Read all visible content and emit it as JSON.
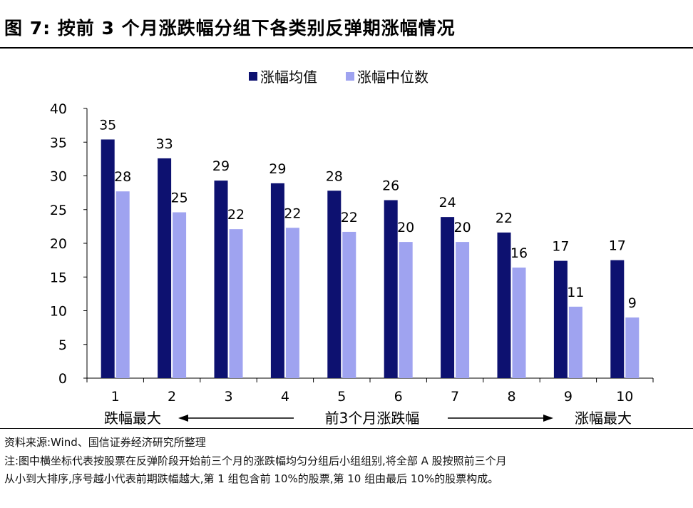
{
  "figure_title": "图 7:  按前 3 个月涨跌幅分组下各类别反弹期涨幅情况",
  "direction": {
    "left_label": "跌幅最大",
    "center_label": "前3个月涨跌幅",
    "right_label": "涨幅最大"
  },
  "source": {
    "line1": "资料来源:Wind、国信证券经济研究所整理",
    "line2": "注:图中横坐标代表按股票在反弹阶段开始前三个月的涨跌幅均匀分组后小组组别,将全部 A 股按照前三个月",
    "line3": "从小到大排序,序号越小代表前期跌幅越大,第 1 组包含前 10%的股票,第 10 组由最后 10%的股票构成。"
  },
  "colors": {
    "mean": "#0d1170",
    "median": "#9fa3f0"
  },
  "chart_data": {
    "type": "bar",
    "categories": [
      "1",
      "2",
      "3",
      "4",
      "5",
      "6",
      "7",
      "8",
      "9",
      "10"
    ],
    "series": [
      {
        "name": "涨幅均值",
        "values": [
          35.4,
          32.6,
          29.3,
          28.9,
          27.8,
          26.4,
          23.9,
          21.6,
          17.4,
          17.5
        ],
        "labels": [
          "35",
          "33",
          "29",
          "29",
          "28",
          "26",
          "24",
          "22",
          "17",
          "17"
        ]
      },
      {
        "name": "涨幅中位数",
        "values": [
          27.7,
          24.6,
          22.1,
          22.3,
          21.7,
          20.2,
          20.2,
          16.4,
          10.6,
          9.0
        ],
        "labels": [
          "28",
          "25",
          "22",
          "22",
          "22",
          "20",
          "20",
          "16",
          "11",
          "9"
        ]
      }
    ],
    "yticks": [
      "0",
      "5",
      "10",
      "15",
      "20",
      "25",
      "30",
      "35",
      "40"
    ],
    "ylim": [
      0,
      40
    ],
    "legend_position": "top-center",
    "grid": false
  }
}
